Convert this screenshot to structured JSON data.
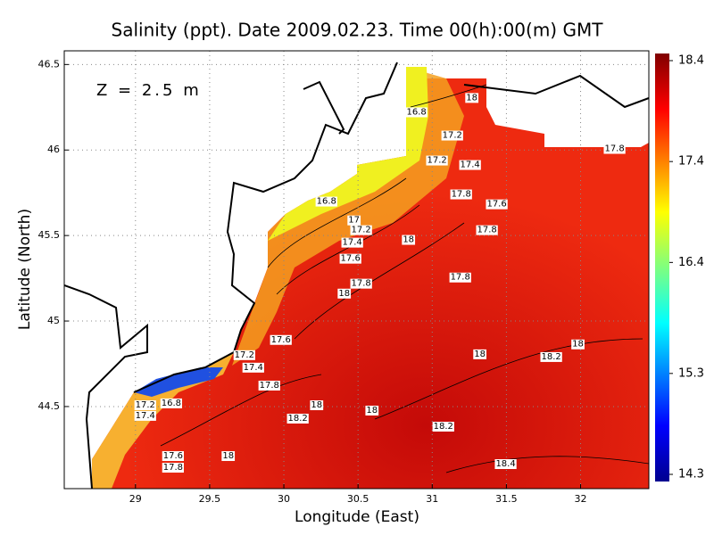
{
  "chart_data": {
    "type": "contour",
    "title": "Salinity (ppt). Date 2009.02.23. Time 00(h):00(m) GMT",
    "annotation": "Z = 2.5 m",
    "x_label": "Longitude (East)",
    "y_label": "Latitude (North)",
    "xlim": [
      28.52,
      32.46
    ],
    "xticks": [
      29,
      29.5,
      30,
      30.5,
      31,
      31.5,
      32
    ],
    "ylim": [
      44.02,
      46.58
    ],
    "yticks": [
      44.5,
      45,
      45.5,
      46,
      46.5
    ],
    "grid": true,
    "colorbar": {
      "lim": [
        14.3,
        18.4
      ],
      "ticks": [
        14.3,
        15.3,
        16.4,
        17.4,
        18.4
      ]
    },
    "contour_labels": [
      {
        "lon": 30.894,
        "lat": 46.223,
        "value": 16.8
      },
      {
        "lon": 31.267,
        "lat": 46.307,
        "value": 18
      },
      {
        "lon": 31.135,
        "lat": 46.087,
        "value": 17.2
      },
      {
        "lon": 31.032,
        "lat": 45.941,
        "value": 17.2
      },
      {
        "lon": 31.255,
        "lat": 45.915,
        "value": 17.4
      },
      {
        "lon": 32.229,
        "lat": 46.009,
        "value": 17.8
      },
      {
        "lon": 31.195,
        "lat": 45.743,
        "value": 17.8
      },
      {
        "lon": 31.435,
        "lat": 45.685,
        "value": 17.6
      },
      {
        "lon": 30.287,
        "lat": 45.701,
        "value": 16.8
      },
      {
        "lon": 30.473,
        "lat": 45.591,
        "value": 17
      },
      {
        "lon": 30.521,
        "lat": 45.534,
        "value": 17.2
      },
      {
        "lon": 30.461,
        "lat": 45.461,
        "value": 17.4
      },
      {
        "lon": 30.84,
        "lat": 45.477,
        "value": 18
      },
      {
        "lon": 31.369,
        "lat": 45.534,
        "value": 17.8
      },
      {
        "lon": 30.449,
        "lat": 45.367,
        "value": 17.6
      },
      {
        "lon": 31.189,
        "lat": 45.257,
        "value": 17.8
      },
      {
        "lon": 30.521,
        "lat": 45.221,
        "value": 17.8
      },
      {
        "lon": 30.407,
        "lat": 45.163,
        "value": 18
      },
      {
        "lon": 29.98,
        "lat": 44.892,
        "value": 17.6
      },
      {
        "lon": 29.734,
        "lat": 44.803,
        "value": 17.2
      },
      {
        "lon": 29.794,
        "lat": 44.73,
        "value": 17.4
      },
      {
        "lon": 29.902,
        "lat": 44.625,
        "value": 17.8
      },
      {
        "lon": 31.982,
        "lat": 44.866,
        "value": 18
      },
      {
        "lon": 31.321,
        "lat": 44.808,
        "value": 18
      },
      {
        "lon": 31.802,
        "lat": 44.792,
        "value": 18.2
      },
      {
        "lon": 30.221,
        "lat": 44.51,
        "value": 18
      },
      {
        "lon": 30.594,
        "lat": 44.479,
        "value": 18
      },
      {
        "lon": 30.094,
        "lat": 44.432,
        "value": 18.2
      },
      {
        "lon": 29.066,
        "lat": 44.51,
        "value": 17.2
      },
      {
        "lon": 29.241,
        "lat": 44.521,
        "value": 16.8
      },
      {
        "lon": 29.066,
        "lat": 44.448,
        "value": 17.4
      },
      {
        "lon": 31.075,
        "lat": 44.385,
        "value": 18.2
      },
      {
        "lon": 29.253,
        "lat": 44.213,
        "value": 17.6
      },
      {
        "lon": 29.625,
        "lat": 44.213,
        "value": 18
      },
      {
        "lon": 29.253,
        "lat": 44.145,
        "value": 17.8
      },
      {
        "lon": 31.495,
        "lat": 44.166,
        "value": 18.4
      }
    ]
  }
}
